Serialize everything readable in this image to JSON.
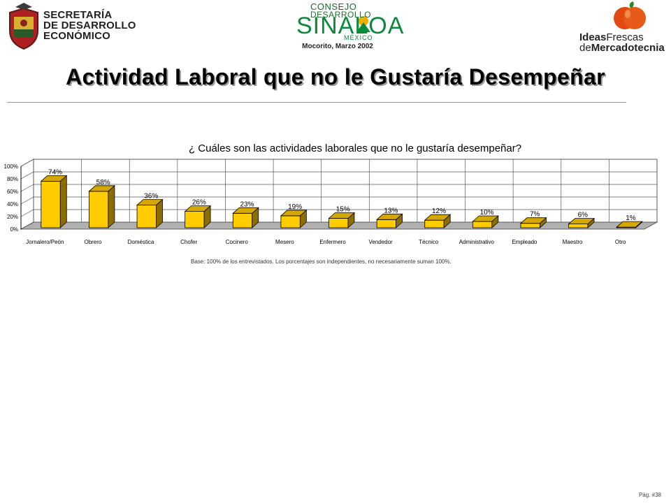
{
  "header": {
    "secretaria_lines": [
      "SECRETARÍA",
      "DE DESARROLLO",
      "ECONÓMICO"
    ],
    "consejo_line1": "CONSEJO",
    "consejo_line2": "DESARROLLO",
    "sinaloa": "SINALOA",
    "mexico": "MÉXICO",
    "location_date": "Mocorito, Marzo 2002",
    "ideas_part1": "Ideas",
    "ideas_part2": "Frescas",
    "ideas_part3": "de",
    "ideas_part4": "Mercadotecnia"
  },
  "page": {
    "title": "Actividad Laboral que no le Gustaría Desempeñar",
    "page_number": "Pág. #38"
  },
  "colors": {
    "bar_front": "#FFCC00",
    "bar_side": "#8C6E00",
    "bar_top": "#D4A800",
    "wall": "#FFFFFF",
    "floor": "#B0B0B0"
  },
  "chart_data": {
    "type": "bar",
    "title": "¿ Cuáles son las actividades laborales que no le gustaría desempeñar?",
    "categories": [
      "Jornalero/Peón",
      "Obrero",
      "Doméstica",
      "Chofer",
      "Cocinero",
      "Mesero",
      "Enfermero",
      "Vendedor",
      "Técnico",
      "Administrativo",
      "Empleado",
      "Maestro",
      "Otro"
    ],
    "values": [
      74,
      58,
      36,
      26,
      23,
      19,
      15,
      13,
      12,
      10,
      7,
      6,
      1
    ],
    "data_labels": [
      "74%",
      "58%",
      "36%",
      "26%",
      "23%",
      "19%",
      "15%",
      "13%",
      "12%",
      "10%",
      "7%",
      "6%",
      "1%"
    ],
    "y_ticks": [
      "0%",
      "20%",
      "40%",
      "60%",
      "80%",
      "100%"
    ],
    "ylim": [
      0,
      100
    ],
    "grid": true,
    "note": "Base:  100% de los entrevistados. Los porcentajes son independientes, no necesariamente suman 100%."
  }
}
